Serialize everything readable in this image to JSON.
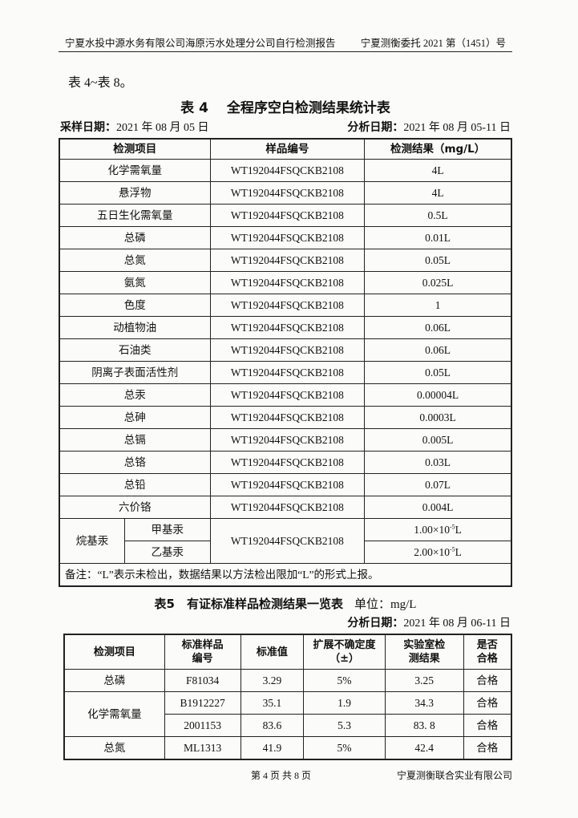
{
  "header": {
    "left": "宁夏水投中源水务有限公司海原污水处理分公司自行检测报告",
    "right": "宁夏测衡委托 2021 第（1451）号"
  },
  "intro": "表 4~表 8。",
  "table4": {
    "title": "表 4　 全程序空白检测结果统计表",
    "sampling_label": "采样日期：",
    "sampling_date": "2021 年 08 月 05 日",
    "analysis_label": "分析日期：",
    "analysis_date": "2021 年 08 月 05-11 日",
    "columns": [
      "检测项目",
      "样品编号",
      "检测结果（mg/L）"
    ],
    "rows": [
      {
        "item": "化学需氧量",
        "sample": "WT192044FSQCKB2108",
        "result": "4L"
      },
      {
        "item": "悬浮物",
        "sample": "WT192044FSQCKB2108",
        "result": "4L"
      },
      {
        "item": "五日生化需氧量",
        "sample": "WT192044FSQCKB2108",
        "result": "0.5L"
      },
      {
        "item": "总磷",
        "sample": "WT192044FSQCKB2108",
        "result": "0.01L"
      },
      {
        "item": "总氮",
        "sample": "WT192044FSQCKB2108",
        "result": "0.05L"
      },
      {
        "item": "氨氮",
        "sample": "WT192044FSQCKB2108",
        "result": "0.025L"
      },
      {
        "item": "色度",
        "sample": "WT192044FSQCKB2108",
        "result": "1"
      },
      {
        "item": "动植物油",
        "sample": "WT192044FSQCKB2108",
        "result": "0.06L"
      },
      {
        "item": "石油类",
        "sample": "WT192044FSQCKB2108",
        "result": "0.06L"
      },
      {
        "item": "阴离子表面活性剂",
        "sample": "WT192044FSQCKB2108",
        "result": "0.05L"
      },
      {
        "item": "总汞",
        "sample": "WT192044FSQCKB2108",
        "result": "0.00004L"
      },
      {
        "item": "总砷",
        "sample": "WT192044FSQCKB2108",
        "result": "0.0003L"
      },
      {
        "item": "总镉",
        "sample": "WT192044FSQCKB2108",
        "result": "0.005L"
      },
      {
        "item": "总铬",
        "sample": "WT192044FSQCKB2108",
        "result": "0.03L"
      },
      {
        "item": "总铅",
        "sample": "WT192044FSQCKB2108",
        "result": "0.07L"
      },
      {
        "item": "六价铬",
        "sample": "WT192044FSQCKB2108",
        "result": "0.004L"
      }
    ],
    "group": {
      "item": "烷基汞",
      "sample": "WT192044FSQCKB2108",
      "sub": [
        {
          "name": "甲基汞",
          "base": "1.00×10",
          "exp": "-5",
          "unit": "L"
        },
        {
          "name": "乙基汞",
          "base": "2.00×10",
          "exp": "-5",
          "unit": "L"
        }
      ]
    },
    "note": "备注：“L”表示未检出，数据结果以方法检出限加“L”的形式上报。"
  },
  "table5": {
    "title": "表5　有证标准样品检测结果一览表",
    "unit": "单位：mg/L",
    "analysis_label": "分析日期：",
    "analysis_date": "2021 年 08 月 06-11 日",
    "columns": [
      "检测项目",
      "标准样品编号",
      "标准值",
      "扩展不确定度（±）",
      "实验室检测结果",
      "是否合格"
    ],
    "rows": [
      {
        "item": "总磷",
        "id": "F81034",
        "std": "3.29",
        "unc": "5%",
        "result": "3.25",
        "pass": "合格"
      },
      {
        "item": "化学需氧量",
        "id": "B1912227",
        "std": "35.1",
        "unc": "1.9",
        "result": "34.3",
        "pass": "合格"
      },
      {
        "item": "",
        "id": "2001153",
        "std": "83.6",
        "unc": "5.3",
        "result": "83. 8",
        "pass": "合格"
      },
      {
        "item": "总氮",
        "id": "ML1313",
        "std": "41.9",
        "unc": "5%",
        "result": "42.4",
        "pass": "合格"
      }
    ]
  },
  "footer": {
    "page": "第 4 页 共 8 页",
    "company": "宁夏测衡联合实业有限公司"
  }
}
